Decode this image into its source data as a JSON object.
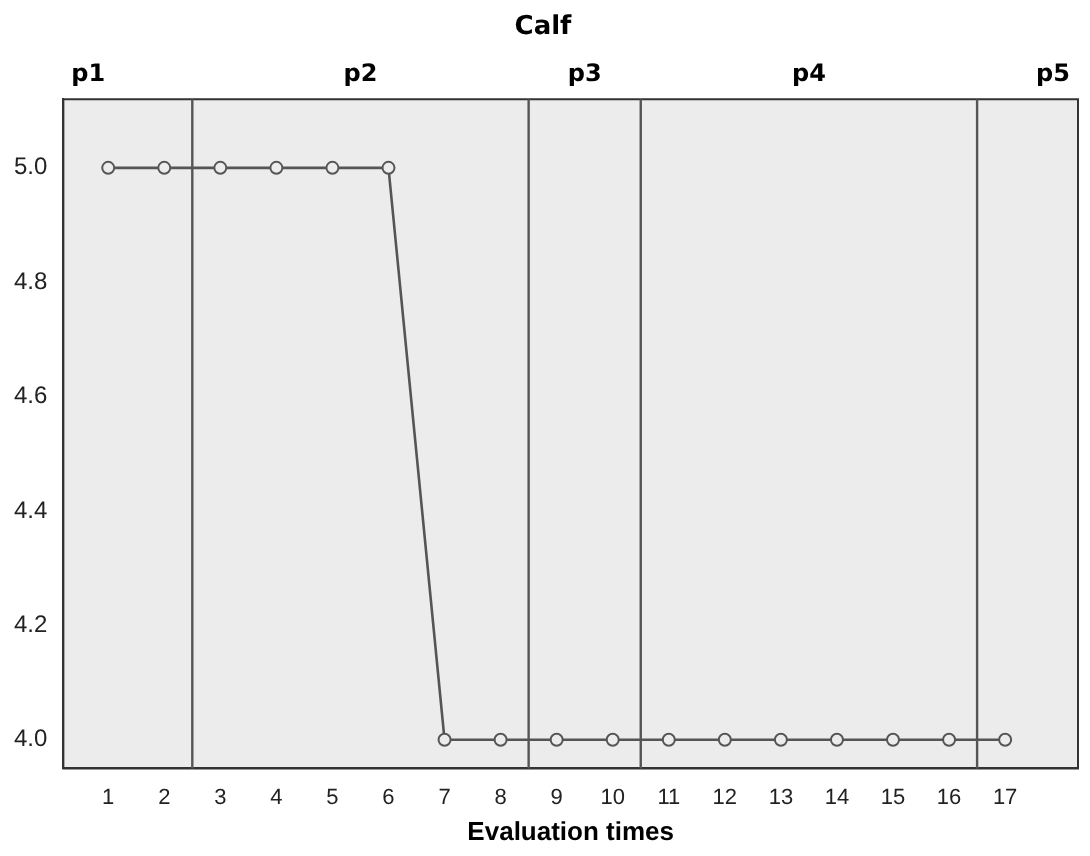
{
  "chart_data": {
    "type": "line",
    "title": "Calf",
    "xlabel": "Evaluation times",
    "x": [
      1,
      2,
      3,
      4,
      5,
      6,
      7,
      8,
      9,
      10,
      11,
      12,
      13,
      14,
      15,
      16,
      17
    ],
    "series": [
      {
        "color": "#555555",
        "values": [
          5.0,
          5.0,
          5.0,
          5.0,
          5.0,
          5.0,
          4.0,
          4.0,
          4.0,
          4.0,
          4.0,
          4.0,
          4.0,
          4.0,
          4.0,
          4.0,
          4.0
        ]
      }
    ],
    "xlim": [
      0.2,
      18.3
    ],
    "xticks": [
      1,
      2,
      3,
      4,
      5,
      6,
      7,
      8,
      9,
      10,
      11,
      12,
      13,
      14,
      15,
      16,
      17
    ],
    "ylim": [
      3.95,
      5.12
    ],
    "yticks": [
      {
        "value": 4.0,
        "label": "4.0"
      },
      {
        "value": 4.2,
        "label": "4.2"
      },
      {
        "value": 4.4,
        "label": "4.4"
      },
      {
        "value": 4.6,
        "label": "4.6"
      },
      {
        "value": 4.8,
        "label": "4.8"
      },
      {
        "value": 5.0,
        "label": "5.0"
      }
    ],
    "ref_lines": [
      {
        "axis": "x",
        "value": 2.5,
        "color": "#555555"
      },
      {
        "axis": "x",
        "value": 8.5,
        "color": "#555555"
      },
      {
        "axis": "x",
        "value": 10.5,
        "color": "#555555"
      },
      {
        "axis": "x",
        "value": 16.5,
        "color": "#555555"
      }
    ],
    "annotations": [
      "p1",
      "p2",
      "p3",
      "p4",
      "p5"
    ],
    "marker": "circle",
    "line_style": "solid",
    "grid": false,
    "legend": false
  }
}
